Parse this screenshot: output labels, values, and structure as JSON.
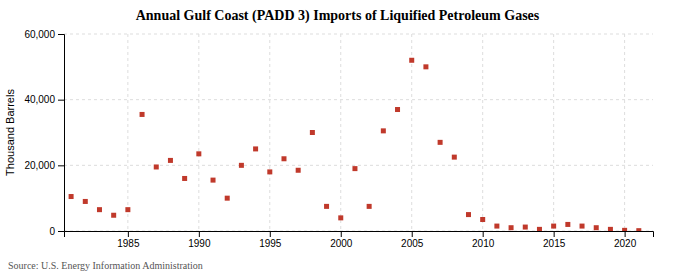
{
  "chart_data": {
    "type": "scatter",
    "title": "Annual Gulf Coast (PADD 3) Imports of Liquified Petroleum Gases",
    "ylabel": "Thousand Barrels",
    "annotation": "Source: U.S. Energy Information Administration",
    "x": [
      1981,
      1982,
      1983,
      1984,
      1985,
      1986,
      1987,
      1988,
      1989,
      1990,
      1991,
      1992,
      1993,
      1994,
      1995,
      1996,
      1997,
      1998,
      1999,
      2000,
      2001,
      2002,
      2003,
      2004,
      2005,
      2006,
      2007,
      2008,
      2009,
      2010,
      2011,
      2012,
      2013,
      2014,
      2015,
      2016,
      2017,
      2018,
      2019,
      2020,
      2021
    ],
    "values": [
      10500,
      9000,
      6500,
      4800,
      6500,
      35500,
      19500,
      21500,
      16000,
      23500,
      15500,
      10000,
      20000,
      25000,
      18000,
      22000,
      18500,
      30000,
      7500,
      4000,
      19000,
      7500,
      30500,
      37000,
      52000,
      50000,
      27000,
      22500,
      5000,
      3500,
      1500,
      1000,
      1200,
      500,
      1500,
      2000,
      1500,
      1000,
      500,
      200,
      100
    ],
    "color": "#c0392b",
    "marker": "square",
    "xlim": [
      1980.5,
      2022
    ],
    "xticks": [
      1985,
      1990,
      1995,
      2000,
      2005,
      2010,
      2015,
      2020
    ],
    "ylim": [
      0,
      60000
    ],
    "yticks": [
      0,
      {
        "value": 20000,
        "label": "20,000"
      },
      {
        "value": 40000,
        "label": "40,000"
      },
      {
        "value": 60000,
        "label": "60,000"
      }
    ],
    "grid": true
  }
}
